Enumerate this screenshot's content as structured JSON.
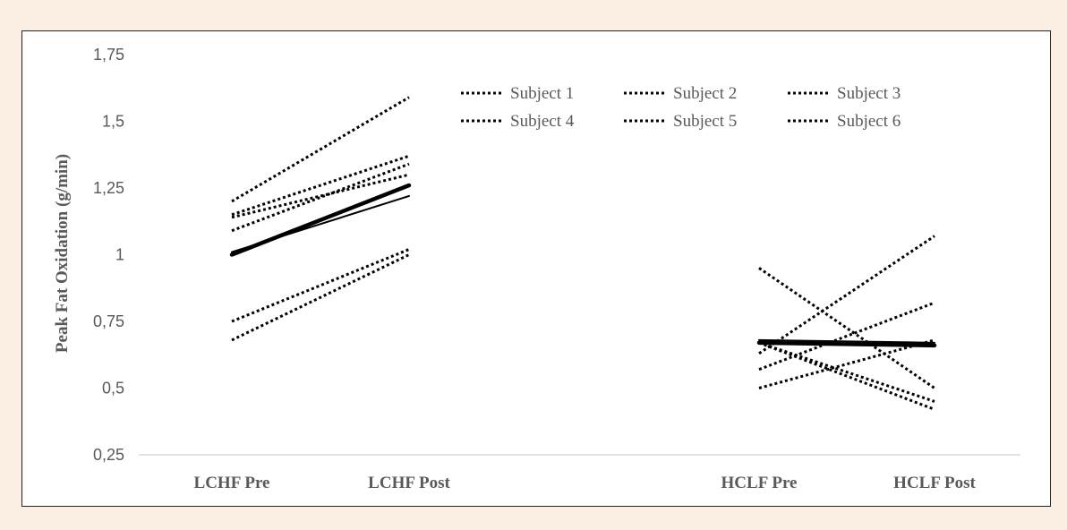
{
  "chart_data": {
    "type": "line",
    "title": "",
    "ylabel": "Peak Fat Oxidation (g/min)",
    "xlabel": "",
    "categories": [
      "LCHF Pre",
      "LCHF Post",
      "HCLF Pre",
      "HCLF Post"
    ],
    "ylim": [
      0.25,
      1.75
    ],
    "yticks": [
      "0,25",
      "0,5",
      "0,75",
      "1",
      "1,25",
      "1,5",
      "1,75"
    ],
    "ytick_values": [
      0.25,
      0.5,
      0.75,
      1,
      1.25,
      1.5,
      1.75
    ],
    "legend_placement": "top-right",
    "grid": false,
    "colors": {
      "line": "#000000",
      "text": "#595959",
      "axis": "#d9d9d9",
      "background": "#fbeee2"
    },
    "series": [
      {
        "name": "Subject 1",
        "style": "dotted",
        "segments": [
          [
            1.2,
            1.59
          ],
          [
            0.67,
            0.42
          ]
        ]
      },
      {
        "name": "Subject 2",
        "style": "dotted",
        "segments": [
          [
            1.15,
            1.37
          ],
          [
            0.5,
            0.68
          ]
        ]
      },
      {
        "name": "Subject 3",
        "style": "dotted",
        "segments": [
          [
            1.14,
            1.3
          ],
          [
            0.63,
            1.07
          ]
        ]
      },
      {
        "name": "Subject 4",
        "style": "dotted",
        "segments": [
          [
            1.09,
            1.34
          ],
          [
            0.57,
            0.82
          ]
        ]
      },
      {
        "name": "Subject 5",
        "style": "dotted",
        "segments": [
          [
            0.75,
            1.02
          ],
          [
            0.95,
            0.5
          ]
        ]
      },
      {
        "name": "Subject 6",
        "style": "dotted",
        "segments": [
          [
            0.68,
            1.0
          ],
          [
            0.67,
            0.45
          ]
        ]
      },
      {
        "style": "solid",
        "segments": [
          [
            1.01,
            1.22
          ],
          [
            0.68,
            0.67
          ]
        ]
      },
      {
        "style": "solid-thick",
        "segments": [
          [
            1.0,
            1.26
          ],
          [
            0.67,
            0.66
          ]
        ]
      }
    ]
  }
}
